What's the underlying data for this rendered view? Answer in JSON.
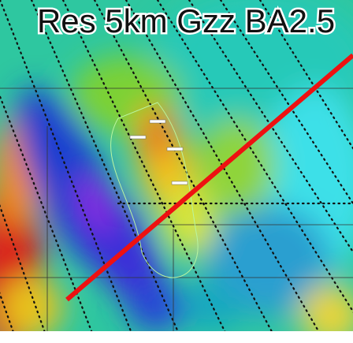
{
  "map": {
    "title": "Res 5km Gzz BA2.5"
  }
}
